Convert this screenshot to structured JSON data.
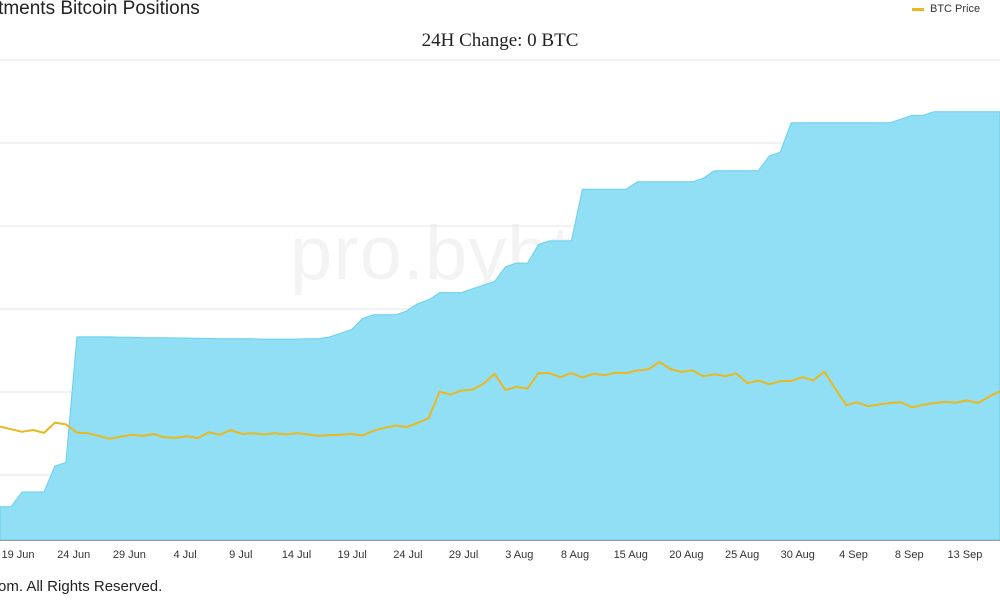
{
  "header": {
    "title": "estments Bitcoin Positions",
    "subtitle": "24H Change: 0 BTC",
    "watermark": "pro.bybt.com"
  },
  "footer": {
    "text": "om. All Rights Reserved."
  },
  "chart_data": {
    "type": "area",
    "title": "estments Bitcoin Positions",
    "subtitle": "24H Change: 0 BTC",
    "x_ticks": [
      "19 Jun",
      "24 Jun",
      "29 Jun",
      "4 Jul",
      "9 Jul",
      "14 Jul",
      "19 Jul",
      "24 Jul",
      "29 Jul",
      "3 Aug",
      "8 Aug",
      "15 Aug",
      "20 Aug",
      "25 Aug",
      "30 Aug",
      "4 Sep",
      "8 Sep",
      "13 Sep"
    ],
    "grid": true,
    "legend": {
      "placement": "top-right",
      "entries": [
        "BTC Price"
      ]
    },
    "colors": {
      "area": "#91dff5",
      "area_stroke": "#66cfee",
      "line": "#e8b820",
      "grid": "#e6e6e6"
    },
    "series": [
      {
        "name": "",
        "kind": "area",
        "values": [
          9,
          9,
          13,
          13,
          13,
          20,
          21,
          55,
          55,
          55,
          55,
          54.9,
          54.9,
          54.8,
          54.8,
          54.8,
          54.7,
          54.7,
          54.6,
          54.6,
          54.5,
          54.5,
          54.5,
          54.5,
          54.4,
          54.4,
          54.4,
          54.4,
          54.5,
          54.5,
          55,
          56,
          57,
          60,
          61,
          61,
          61,
          62,
          64,
          65,
          67,
          67,
          67,
          68,
          69,
          70,
          74,
          75,
          75,
          80,
          81,
          81,
          81,
          95,
          95,
          95,
          95,
          95,
          97,
          97,
          97,
          97,
          97,
          97,
          98,
          100,
          100,
          100,
          100,
          100,
          104,
          105,
          113,
          113,
          113,
          113,
          113,
          113,
          113,
          113,
          113,
          113,
          114,
          115,
          115,
          116,
          116,
          116,
          116,
          116,
          116,
          116
        ]
      },
      {
        "name": "BTC Price",
        "kind": "line",
        "values": [
          30.7,
          30.0,
          29.3,
          29.8,
          29.0,
          31.8,
          31.3,
          29.1,
          28.9,
          28.2,
          27.4,
          28.0,
          28.5,
          28.2,
          28.7,
          27.8,
          27.7,
          28.1,
          27.6,
          29.2,
          28.5,
          29.8,
          28.7,
          28.9,
          28.6,
          28.9,
          28.6,
          28.9,
          28.6,
          28.2,
          28.4,
          28.5,
          28.7,
          28.3,
          29.6,
          30.4,
          31.0,
          30.6,
          31.7,
          33.0,
          40.2,
          39.4,
          40.5,
          40.7,
          42.3,
          45.0,
          40.6,
          41.5,
          41.0,
          45.2,
          45.2,
          44.1,
          45.2,
          44.0,
          45.0,
          44.6,
          45.3,
          45.2,
          45.9,
          46.2,
          48.2,
          46.3,
          45.5,
          46.0,
          44.3,
          44.9,
          44.4,
          45.1,
          42.5,
          43.2,
          42.2,
          43.0,
          43.1,
          44.1,
          43.2,
          45.6,
          41.0,
          36.5,
          37.3,
          36.2,
          36.7,
          37.1,
          37.3,
          35.9,
          36.6,
          37.1,
          37.4,
          37.2,
          37.8,
          37.1,
          38.8,
          40.3
        ]
      }
    ]
  }
}
